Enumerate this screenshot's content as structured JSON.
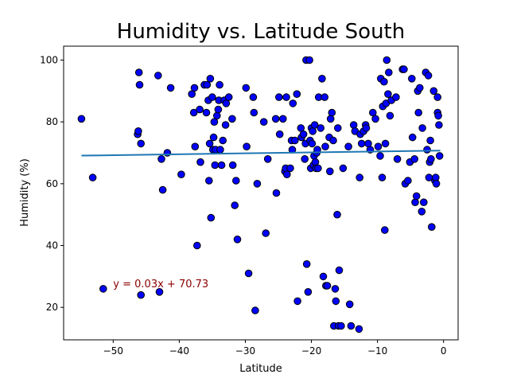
{
  "chart_data": {
    "type": "scatter",
    "title": "Humidity vs. Latitude South",
    "xlabel": "Latitude",
    "ylabel": "Humidity (%)",
    "xlim": [
      -57.5,
      2.2
    ],
    "ylim": [
      9.5,
      104.5
    ],
    "xticks": [
      -50,
      -40,
      -30,
      -20,
      -10,
      0
    ],
    "yticks": [
      20,
      40,
      60,
      80,
      100
    ],
    "xtick_labels": [
      "−50",
      "−40",
      "−30",
      "−20",
      "−10",
      "0"
    ],
    "ytick_labels": [
      "20",
      "40",
      "60",
      "80",
      "100"
    ],
    "grid": false,
    "marker_color": "#0000ff",
    "marker_edge_color": "#000000",
    "regression": {
      "slope": 0.03,
      "intercept": 70.73,
      "x_range": [
        -54.8,
        -0.5
      ],
      "color": "#1f77b4",
      "equation": "y = 0.03x + 70.73",
      "equation_color": "#8b0000",
      "equation_position": [
        -50,
        26.5
      ]
    },
    "points": [
      [
        -54.8,
        81
      ],
      [
        -53.1,
        62
      ],
      [
        -51.5,
        26
      ],
      [
        -46.3,
        76
      ],
      [
        -46.2,
        77
      ],
      [
        -46.1,
        96
      ],
      [
        -46.0,
        92
      ],
      [
        -45.8,
        73
      ],
      [
        -45.8,
        24
      ],
      [
        -43.2,
        95
      ],
      [
        -43.0,
        25
      ],
      [
        -42.7,
        68
      ],
      [
        -42.5,
        58
      ],
      [
        -41.8,
        70
      ],
      [
        -41.3,
        91
      ],
      [
        -39.7,
        63
      ],
      [
        -38.1,
        89
      ],
      [
        -37.8,
        83
      ],
      [
        -37.7,
        91
      ],
      [
        -37.6,
        72
      ],
      [
        -37.3,
        40
      ],
      [
        -36.9,
        84
      ],
      [
        -36.8,
        67
      ],
      [
        -36.2,
        92
      ],
      [
        -35.9,
        83
      ],
      [
        -35.8,
        92
      ],
      [
        -35.6,
        87
      ],
      [
        -35.5,
        61
      ],
      [
        -35.4,
        73
      ],
      [
        -35.3,
        94
      ],
      [
        -35.2,
        49
      ],
      [
        -35.0,
        88
      ],
      [
        -34.9,
        71
      ],
      [
        -34.8,
        75
      ],
      [
        -34.7,
        80
      ],
      [
        -34.6,
        66
      ],
      [
        -34.5,
        71
      ],
      [
        -34.3,
        82
      ],
      [
        -34.1,
        84
      ],
      [
        -34.0,
        87
      ],
      [
        -33.9,
        92
      ],
      [
        -33.8,
        71
      ],
      [
        -33.6,
        66
      ],
      [
        -33.4,
        74
      ],
      [
        -33.2,
        87
      ],
      [
        -33.0,
        79
      ],
      [
        -32.9,
        86
      ],
      [
        -32.5,
        88
      ],
      [
        -32.0,
        81
      ],
      [
        -31.9,
        66
      ],
      [
        -31.6,
        53
      ],
      [
        -31.4,
        61
      ],
      [
        -31.2,
        42
      ],
      [
        -29.9,
        91
      ],
      [
        -29.8,
        72
      ],
      [
        -29.5,
        31
      ],
      [
        -28.8,
        88
      ],
      [
        -28.7,
        83
      ],
      [
        -28.5,
        19
      ],
      [
        -28.2,
        60
      ],
      [
        -27.2,
        80
      ],
      [
        -26.9,
        44
      ],
      [
        -26.6,
        68
      ],
      [
        -25.4,
        81
      ],
      [
        -25.3,
        57
      ],
      [
        -24.9,
        88
      ],
      [
        -24.8,
        76
      ],
      [
        -24.3,
        81
      ],
      [
        -24.0,
        64
      ],
      [
        -23.9,
        65
      ],
      [
        -23.8,
        88
      ],
      [
        -23.7,
        63
      ],
      [
        -23.2,
        65
      ],
      [
        -23.0,
        74
      ],
      [
        -22.9,
        71
      ],
      [
        -22.8,
        86
      ],
      [
        -22.5,
        74
      ],
      [
        -22.2,
        89
      ],
      [
        -22.1,
        22
      ],
      [
        -21.6,
        78
      ],
      [
        -21.5,
        75
      ],
      [
        -21.2,
        76
      ],
      [
        -21.0,
        68
      ],
      [
        -20.9,
        73
      ],
      [
        -20.8,
        100
      ],
      [
        -20.7,
        34
      ],
      [
        -20.5,
        25
      ],
      [
        -20.3,
        100
      ],
      [
        -20.2,
        74
      ],
      [
        -20.1,
        65
      ],
      [
        -20.0,
        78
      ],
      [
        -19.9,
        73
      ],
      [
        -19.8,
        77
      ],
      [
        -19.7,
        66
      ],
      [
        -19.6,
        69
      ],
      [
        -19.5,
        79
      ],
      [
        -19.4,
        67
      ],
      [
        -19.3,
        65
      ],
      [
        -19.2,
        70
      ],
      [
        -19.1,
        71
      ],
      [
        -19.0,
        65
      ],
      [
        -18.9,
        88
      ],
      [
        -18.6,
        78
      ],
      [
        -18.4,
        94
      ],
      [
        -18.2,
        30
      ],
      [
        -18.0,
        88
      ],
      [
        -17.9,
        72
      ],
      [
        -17.8,
        27
      ],
      [
        -17.6,
        27
      ],
      [
        -17.3,
        75
      ],
      [
        -17.2,
        64
      ],
      [
        -17.1,
        81
      ],
      [
        -16.9,
        83
      ],
      [
        -16.7,
        74
      ],
      [
        -16.6,
        14
      ],
      [
        -16.4,
        26
      ],
      [
        -16.3,
        22
      ],
      [
        -16.1,
        50
      ],
      [
        -16.0,
        78
      ],
      [
        -15.9,
        14
      ],
      [
        -15.8,
        32
      ],
      [
        -15.5,
        14
      ],
      [
        -15.2,
        65
      ],
      [
        -14.4,
        72
      ],
      [
        -14.2,
        21
      ],
      [
        -14.0,
        14
      ],
      [
        -13.6,
        79
      ],
      [
        -13.4,
        77
      ],
      [
        -12.8,
        13
      ],
      [
        -12.7,
        62
      ],
      [
        -12.6,
        76
      ],
      [
        -12.4,
        73
      ],
      [
        -12.1,
        77
      ],
      [
        -11.8,
        79
      ],
      [
        -11.7,
        78
      ],
      [
        -11.4,
        73
      ],
      [
        -11.1,
        71
      ],
      [
        -10.7,
        83
      ],
      [
        -10.3,
        81
      ],
      [
        -9.9,
        72
      ],
      [
        -9.6,
        69
      ],
      [
        -9.5,
        94
      ],
      [
        -9.3,
        62
      ],
      [
        -9.2,
        85
      ],
      [
        -9.0,
        93
      ],
      [
        -8.9,
        45
      ],
      [
        -8.8,
        73
      ],
      [
        -8.7,
        86
      ],
      [
        -8.6,
        100
      ],
      [
        -8.4,
        89
      ],
      [
        -8.3,
        96
      ],
      [
        -8.1,
        82
      ],
      [
        -7.9,
        87
      ],
      [
        -7.2,
        88
      ],
      [
        -7.0,
        68
      ],
      [
        -6.2,
        97
      ],
      [
        -6.0,
        97
      ],
      [
        -5.8,
        60
      ],
      [
        -5.4,
        61
      ],
      [
        -5.1,
        67
      ],
      [
        -4.8,
        94
      ],
      [
        -4.7,
        75
      ],
      [
        -4.4,
        68
      ],
      [
        -4.3,
        54
      ],
      [
        -4.1,
        56
      ],
      [
        -3.9,
        90
      ],
      [
        -3.8,
        83
      ],
      [
        -3.6,
        91
      ],
      [
        -3.3,
        51
      ],
      [
        -3.2,
        78
      ],
      [
        -3.0,
        54
      ],
      [
        -2.7,
        96
      ],
      [
        -2.5,
        71
      ],
      [
        -2.3,
        95
      ],
      [
        -2.2,
        62
      ],
      [
        -2.1,
        67
      ],
      [
        -2.0,
        74
      ],
      [
        -1.9,
        68
      ],
      [
        -1.8,
        46
      ],
      [
        -1.5,
        90
      ],
      [
        -1.3,
        61
      ],
      [
        -1.2,
        62
      ],
      [
        -1.1,
        60
      ],
      [
        -0.9,
        83
      ],
      [
        -0.9,
        88
      ],
      [
        -0.8,
        82
      ],
      [
        -0.7,
        79
      ],
      [
        -0.6,
        69
      ]
    ]
  }
}
